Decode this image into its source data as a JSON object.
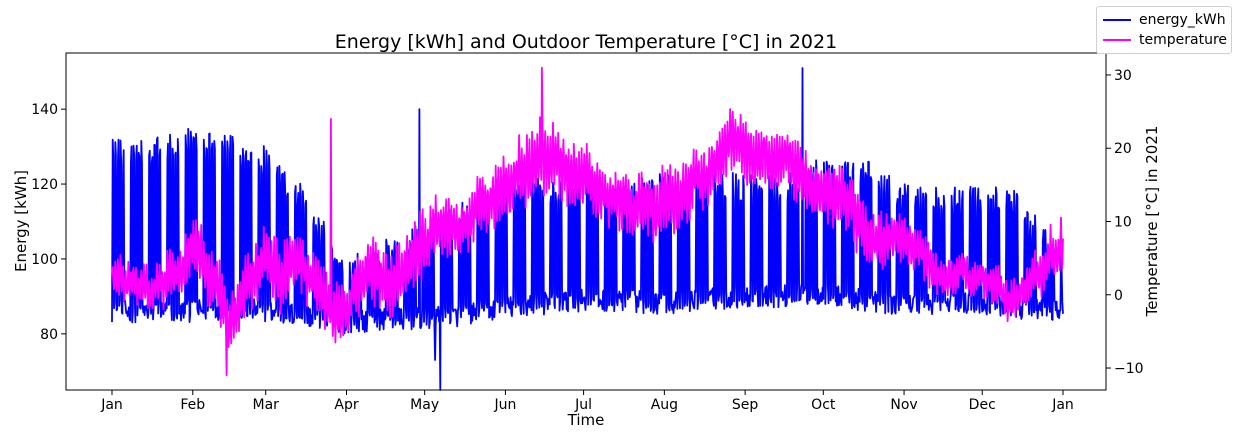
{
  "chart_data": {
    "type": "line",
    "title": "Energy [kWh] and Outdoor Temperature [°C] in 2021",
    "xlabel": "Time",
    "ylabel_left": "Energy [kWh]",
    "ylabel_right": "Temperature [°C] in 2021",
    "x_ticks": [
      "Jan",
      "Feb",
      "Mar",
      "Apr",
      "May",
      "Jun",
      "Jul",
      "Aug",
      "Sep",
      "Oct",
      "Nov",
      "Dec",
      "Jan"
    ],
    "y_left_ticks": [
      80,
      100,
      120,
      140
    ],
    "y_left_range": [
      65,
      155
    ],
    "y_right_ticks": [
      -10,
      0,
      10,
      20,
      30
    ],
    "y_right_range": [
      -13,
      33
    ],
    "grid": false,
    "legend_position": "top-right",
    "series": [
      {
        "name": "energy_kWh",
        "axis": "left",
        "color": "#0000ff",
        "x": [
          "2021-01-01",
          "2021-01-15",
          "2021-02-01",
          "2021-02-15",
          "2021-03-01",
          "2021-03-15",
          "2021-04-01",
          "2021-04-15",
          "2021-05-01",
          "2021-05-15",
          "2021-06-01",
          "2021-06-15",
          "2021-07-01",
          "2021-07-15",
          "2021-08-01",
          "2021-08-15",
          "2021-09-01",
          "2021-09-15",
          "2021-10-01",
          "2021-10-15",
          "2021-11-01",
          "2021-11-15",
          "2021-12-01",
          "2021-12-15",
          "2021-12-31"
        ],
        "baseline": [
          86,
          86,
          86,
          87,
          86,
          85,
          83,
          84,
          84,
          85,
          87,
          88,
          89,
          89,
          88,
          89,
          90,
          90,
          91,
          89,
          88,
          88,
          88,
          87,
          86
        ],
        "peak": [
          132,
          133,
          135,
          134,
          130,
          120,
          100,
          105,
          110,
          115,
          124,
          122,
          121,
          122,
          123,
          123,
          123,
          122,
          128,
          128,
          120,
          119,
          120,
          118,
          103
        ],
        "spikes": [
          {
            "x": "2021-04-29",
            "y": 140
          },
          {
            "x": "2021-05-05",
            "y": 73
          },
          {
            "x": "2021-05-07",
            "y": 65
          },
          {
            "x": "2021-09-23",
            "y": 151
          }
        ]
      },
      {
        "name": "temperature",
        "axis": "right",
        "color": "#ff00ff",
        "x": [
          "2021-01-01",
          "2021-01-15",
          "2021-02-01",
          "2021-02-10",
          "2021-02-15",
          "2021-03-01",
          "2021-03-15",
          "2021-04-01",
          "2021-04-15",
          "2021-05-01",
          "2021-05-15",
          "2021-06-01",
          "2021-06-15",
          "2021-07-01",
          "2021-07-15",
          "2021-08-01",
          "2021-08-15",
          "2021-09-01",
          "2021-09-15",
          "2021-10-01",
          "2021-10-15",
          "2021-11-01",
          "2021-11-15",
          "2021-12-01",
          "2021-12-15",
          "2021-12-31"
        ],
        "mean": [
          2,
          0,
          5,
          3,
          -5,
          7,
          6,
          1,
          4,
          7,
          9,
          14,
          20,
          17,
          16,
          17,
          15,
          18,
          18,
          13,
          10,
          5,
          3,
          2,
          0,
          8
        ],
        "amplitude": [
          4,
          4,
          6,
          6,
          5,
          7,
          6,
          6,
          7,
          7,
          5,
          7,
          8,
          6,
          6,
          7,
          6,
          6,
          6,
          6,
          6,
          5,
          4,
          4,
          4,
          6
        ],
        "extremes": [
          {
            "x": "2021-02-14",
            "y": -11
          },
          {
            "x": "2021-06-15",
            "y": 31
          },
          {
            "x": "2021-03-26",
            "y": 24
          }
        ]
      }
    ]
  }
}
